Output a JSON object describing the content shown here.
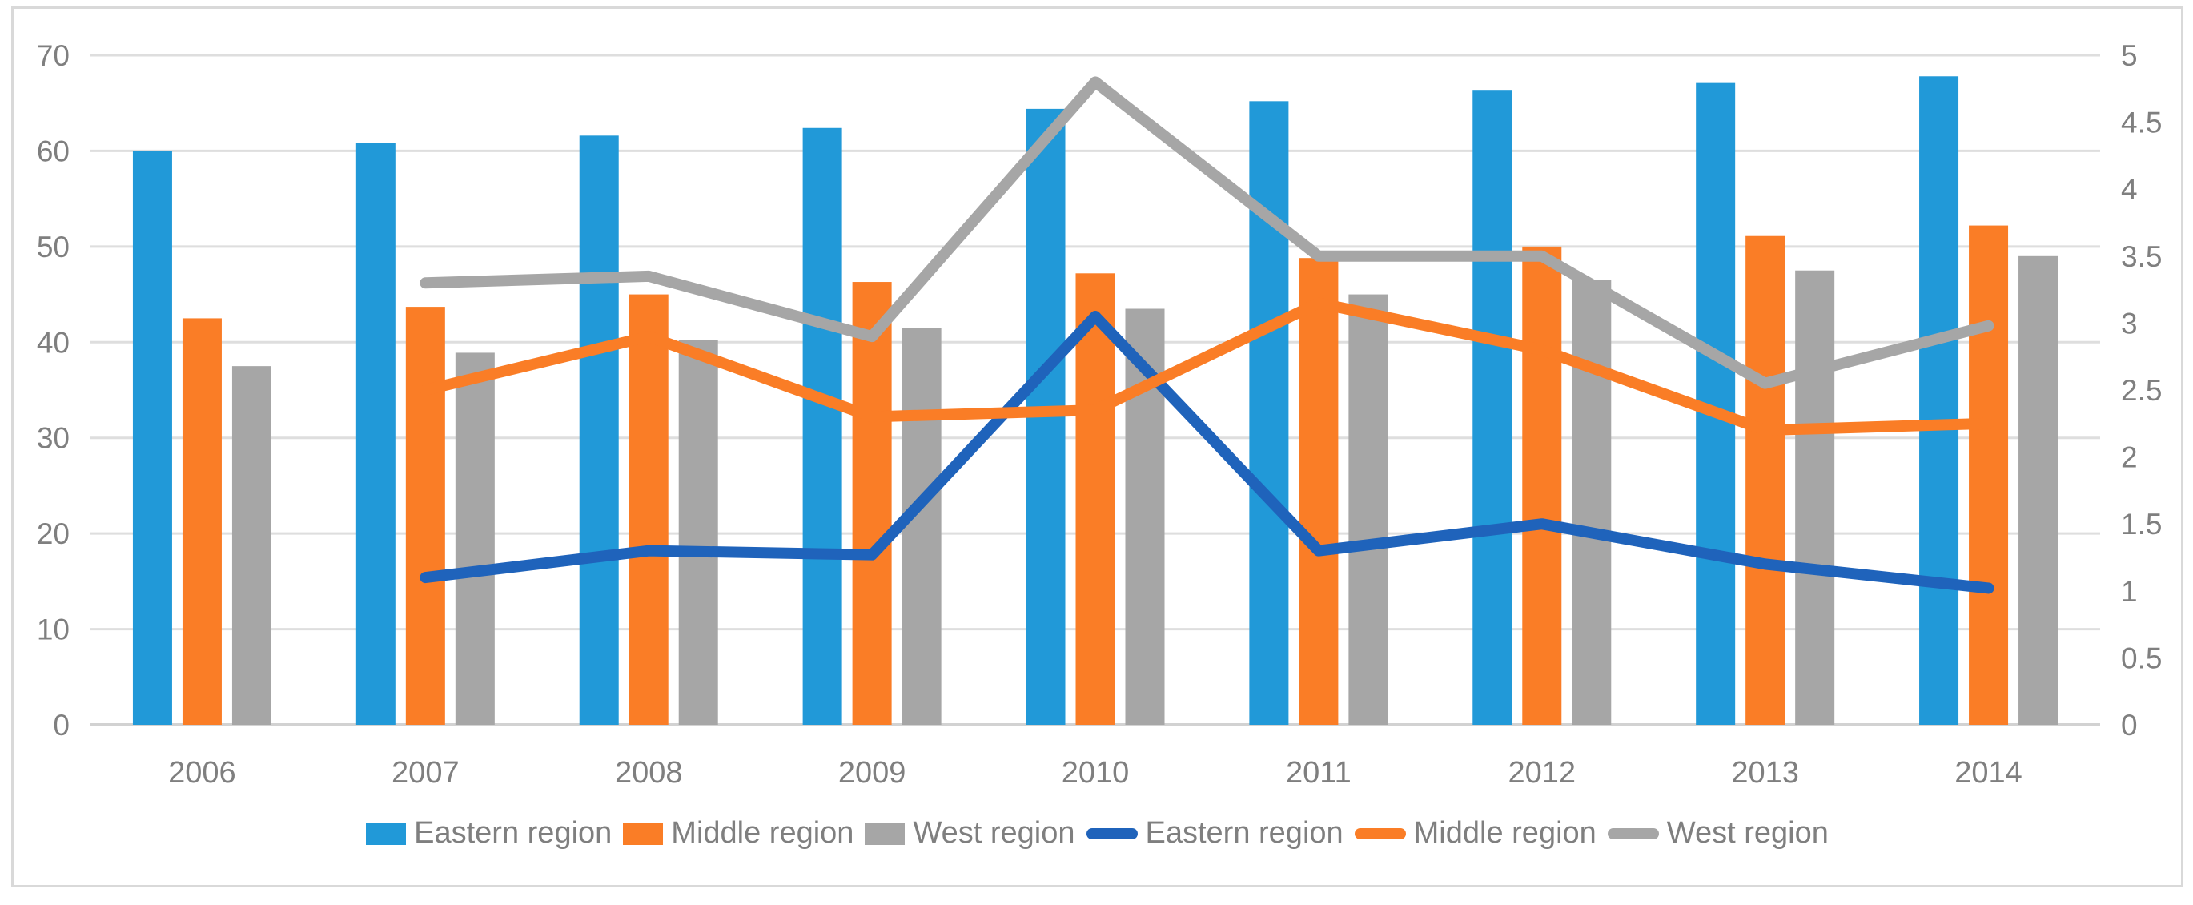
{
  "chart_data": {
    "type": "combo-bar-line",
    "title": "",
    "categories": [
      "2006",
      "2007",
      "2008",
      "2009",
      "2010",
      "2011",
      "2012",
      "2013",
      "2014"
    ],
    "bar_series": [
      {
        "name": "Eastern region",
        "color": "#2199d8",
        "values": [
          60,
          60.8,
          61.6,
          62.4,
          64.4,
          65.2,
          66.3,
          67.1,
          67.8
        ]
      },
      {
        "name": "Middle region",
        "color": "#fa7d26",
        "values": [
          42.5,
          43.7,
          45,
          46.3,
          47.2,
          48.8,
          50,
          51.1,
          52.2
        ]
      },
      {
        "name": "West region",
        "color": "#a6a6a6",
        "values": [
          37.5,
          38.9,
          40.2,
          41.5,
          43.5,
          45,
          46.5,
          47.5,
          49
        ]
      }
    ],
    "line_series": [
      {
        "name": "Eastern region",
        "color": "#1f63bb",
        "values": [
          null,
          1.1,
          1.3,
          1.27,
          3.05,
          1.3,
          1.5,
          1.2,
          1.02
        ]
      },
      {
        "name": "Middle region",
        "color": "#fa7d26",
        "values": [
          null,
          2.5,
          2.9,
          2.3,
          2.35,
          3.15,
          2.8,
          2.2,
          2.25
        ]
      },
      {
        "name": "West region",
        "color": "#a6a6a6",
        "values": [
          null,
          3.3,
          3.35,
          2.9,
          4.8,
          3.5,
          3.5,
          2.55,
          2.98
        ]
      }
    ],
    "left_axis": {
      "min": 0,
      "max": 70,
      "step": 10,
      "ticks": [
        "0",
        "10",
        "20",
        "30",
        "40",
        "50",
        "60",
        "70"
      ]
    },
    "right_axis": {
      "min": 0,
      "max": 5,
      "step": 0.5,
      "ticks": [
        "0",
        "0.5",
        "1",
        "1.5",
        "2",
        "2.5",
        "3",
        "3.5",
        "4",
        "4.5",
        "5"
      ]
    },
    "grid": "horizontal",
    "legend_position": "bottom",
    "legend": [
      {
        "label": "Eastern region",
        "marker": "bar",
        "color": "#2199d8"
      },
      {
        "label": "Middle region",
        "marker": "bar",
        "color": "#fa7d26"
      },
      {
        "label": "West region",
        "marker": "bar",
        "color": "#a6a6a6"
      },
      {
        "label": "Eastern region",
        "marker": "line",
        "color": "#1f63bb"
      },
      {
        "label": "Middle region",
        "marker": "line",
        "color": "#fa7d26"
      },
      {
        "label": "West region",
        "marker": "line",
        "color": "#a6a6a6"
      }
    ]
  },
  "styles": {
    "gridline_color": "#dedede",
    "baseline_color": "#d2d2d2",
    "axis_label_color": "#7f7f7f",
    "frame_color": "#d9d9d9",
    "background": "#ffffff"
  }
}
